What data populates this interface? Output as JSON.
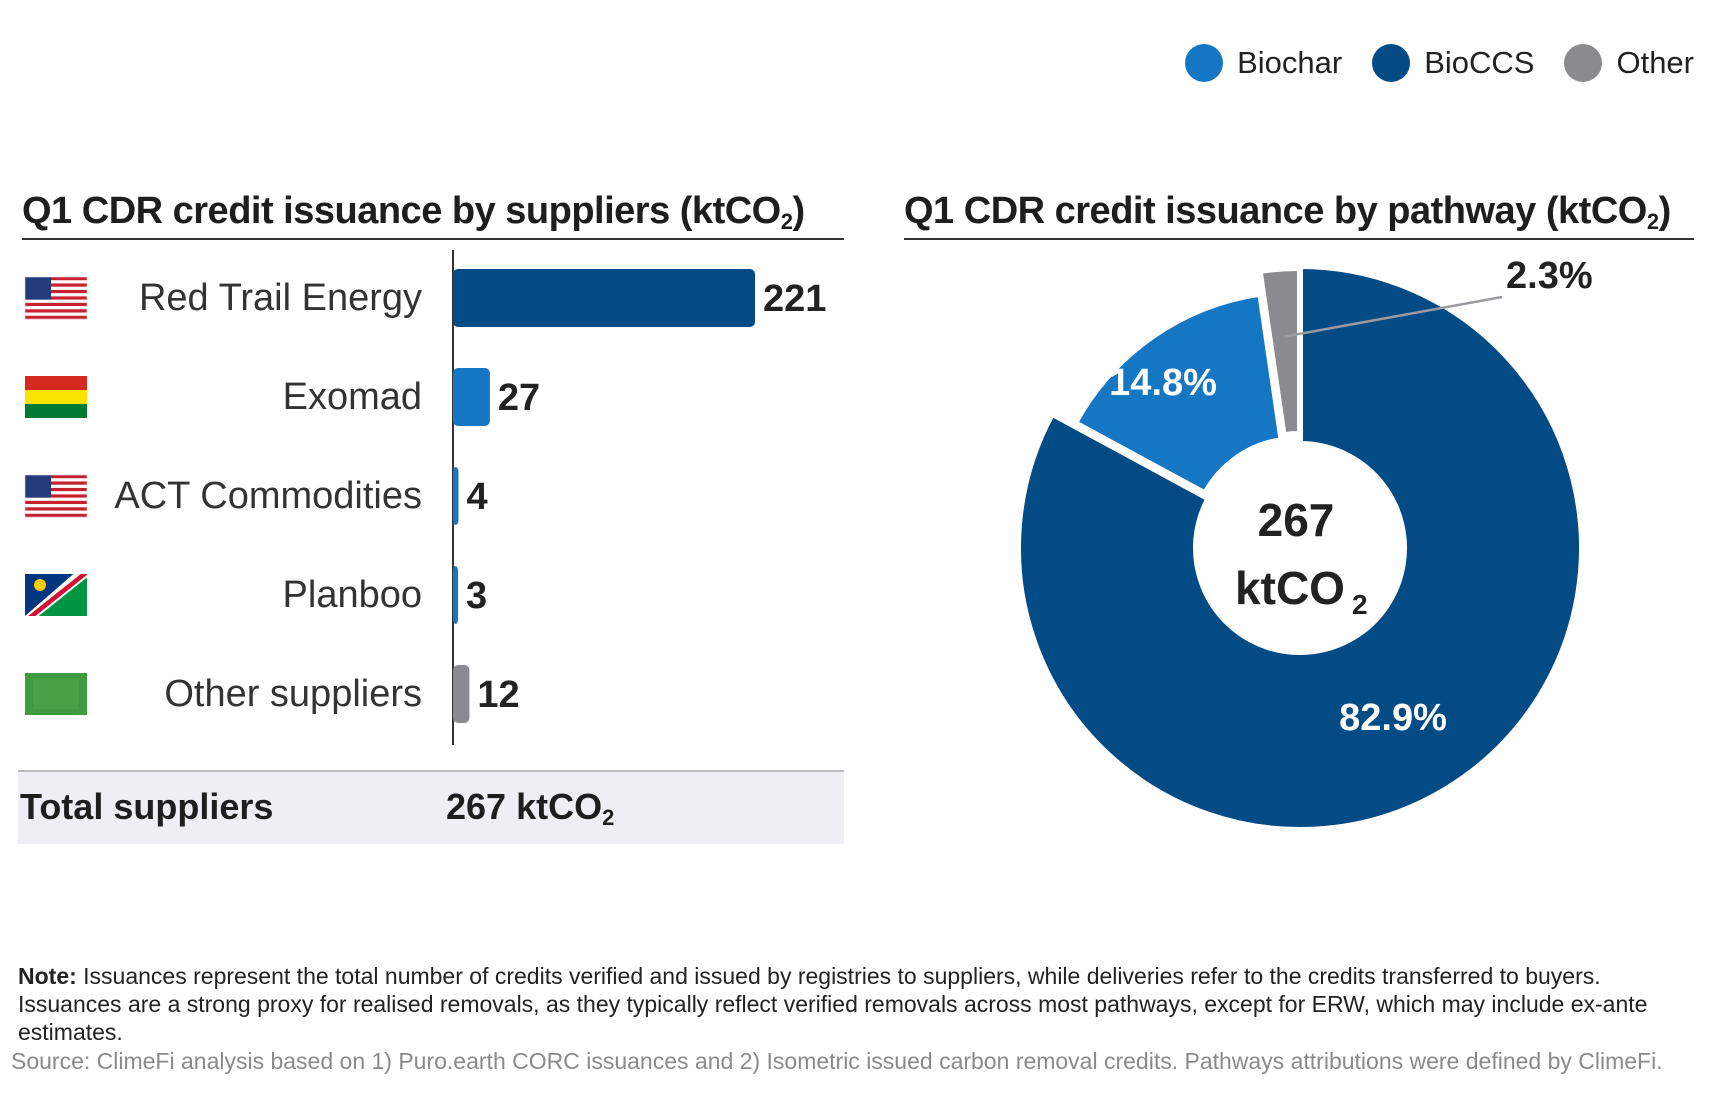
{
  "legend": [
    {
      "label": "Biochar",
      "color": "#1576c4"
    },
    {
      "label": "BioCCS",
      "color": "#034b85"
    },
    {
      "label": "Other",
      "color": "#8b8b8f"
    }
  ],
  "left_title": {
    "text": "Q1 CDR credit issuance by suppliers (ktCO",
    "sub": "2",
    "end": ")"
  },
  "right_title": {
    "text": "Q1 CDR credit issuance by pathway (ktCO",
    "sub": "2",
    "end": ")"
  },
  "total": {
    "label": "Total suppliers",
    "value": "267 ktCO",
    "sub": "2"
  },
  "center_label": {
    "value": "267",
    "unit": "ktCO",
    "sub": "2"
  },
  "note": {
    "prefix": "Note:",
    "text": " Issuances represent the total number of credits verified and issued by registries to suppliers, while deliveries refer to the credits transferred to buyers. Issuances are a strong proxy for realised removals, as they typically reflect verified removals across most pathways, except for ERW, which may include ex-ante estimates."
  },
  "source": "Source: ClimeFi analysis based on 1) Puro.earth CORC issuances and 2) Isometric issued carbon removal credits. Pathways attributions were defined by ClimeFi.",
  "chart_data": [
    {
      "type": "bar",
      "orientation": "horizontal",
      "categories": [
        "Red Trail Energy",
        "Exomad",
        "ACT Commodities",
        "Planboo",
        "Other suppliers"
      ],
      "values": [
        221,
        27,
        4,
        3,
        12
      ],
      "labels": [
        "221",
        "27",
        "4",
        "3",
        "12"
      ],
      "colors": [
        "#034b85",
        "#1576c4",
        "#1576c4",
        "#1576c4",
        "#8b8b8f"
      ],
      "flags": [
        "us",
        "bolivia",
        "us",
        "namibia",
        "other"
      ],
      "xlim": [
        0,
        221
      ]
    },
    {
      "type": "pie",
      "style": "donut",
      "slices": [
        {
          "name": "BioCCS",
          "percent": 82.9,
          "label": "82.9%",
          "color": "#034b85"
        },
        {
          "name": "Biochar",
          "percent": 14.8,
          "label": "14.8%",
          "color": "#1576c4"
        },
        {
          "name": "Other",
          "percent": 2.3,
          "label": "2.3%",
          "color": "#8b8b8f"
        }
      ],
      "total": 267
    }
  ]
}
